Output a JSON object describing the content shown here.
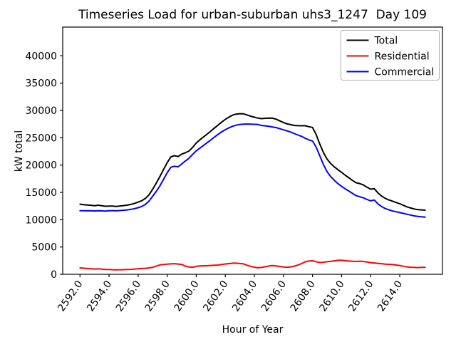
{
  "figure": {
    "title": "Timeseries Load for urban-suburban uhs3_1247  Day 109",
    "xlabel": "Hour of Year",
    "ylabel": "kW total",
    "background": "#ffffff",
    "spine_color": "#000000",
    "legend_edge_color": "#b0b0b0"
  },
  "chart_data": {
    "type": "line",
    "title": "Timeseries Load for urban-suburban uhs3_1247  Day 109",
    "xlabel": "Hour of Year",
    "ylabel": "kW total",
    "grid": false,
    "legend_position": "upper right",
    "xlim": [
      2590.81,
      2616.94
    ],
    "ylim": [
      0,
      45260
    ],
    "x_ticks": [
      2592,
      2594,
      2596,
      2598,
      2600,
      2602,
      2604,
      2606,
      2608,
      2610,
      2612,
      2614
    ],
    "x_tick_labels": [
      "2592.0",
      "2594.0",
      "2596.0",
      "2598.0",
      "2600.0",
      "2602.0",
      "2604.0",
      "2606.0",
      "2608.0",
      "2610.0",
      "2612.0",
      "2614.0"
    ],
    "x_tick_rotation": -55,
    "y_ticks": [
      0,
      5000,
      10000,
      15000,
      20000,
      25000,
      30000,
      35000,
      40000
    ],
    "y_tick_labels": [
      "0",
      "5000",
      "10000",
      "15000",
      "20000",
      "25000",
      "30000",
      "35000",
      "40000"
    ],
    "x": [
      2592.0,
      2592.25,
      2592.5,
      2592.75,
      2593.0,
      2593.25,
      2593.5,
      2593.75,
      2594.0,
      2594.25,
      2594.5,
      2594.75,
      2595.0,
      2595.25,
      2595.5,
      2595.75,
      2596.0,
      2596.25,
      2596.5,
      2596.75,
      2597.0,
      2597.25,
      2597.5,
      2597.75,
      2598.0,
      2598.25,
      2598.5,
      2598.75,
      2599.0,
      2599.25,
      2599.5,
      2599.75,
      2600.0,
      2600.25,
      2600.5,
      2600.75,
      2601.0,
      2601.25,
      2601.5,
      2601.75,
      2602.0,
      2602.25,
      2602.5,
      2602.75,
      2603.0,
      2603.25,
      2603.5,
      2603.75,
      2604.0,
      2604.25,
      2604.5,
      2604.75,
      2605.0,
      2605.25,
      2605.5,
      2605.75,
      2606.0,
      2606.25,
      2606.5,
      2606.75,
      2607.0,
      2607.25,
      2607.5,
      2607.75,
      2608.0,
      2608.25,
      2608.5,
      2608.75,
      2609.0,
      2609.25,
      2609.5,
      2609.75,
      2610.0,
      2610.25,
      2610.5,
      2610.75,
      2611.0,
      2611.25,
      2611.5,
      2611.75,
      2612.0,
      2612.25,
      2612.5,
      2612.75,
      2613.0,
      2613.25,
      2613.5,
      2613.75,
      2614.0,
      2614.25,
      2614.5,
      2614.75,
      2615.0,
      2615.25,
      2615.5,
      2615.75
    ],
    "series": [
      {
        "name": "Total",
        "color": "#000000",
        "values": [
          12830,
          12750,
          12680,
          12640,
          12560,
          12650,
          12550,
          12460,
          12500,
          12500,
          12430,
          12510,
          12570,
          12660,
          12800,
          12990,
          13210,
          13480,
          13900,
          14570,
          15580,
          16710,
          17920,
          19200,
          20450,
          21500,
          21720,
          21560,
          22000,
          22250,
          22580,
          23240,
          24050,
          24620,
          25160,
          25680,
          26220,
          26780,
          27320,
          27870,
          28370,
          28780,
          29140,
          29330,
          29400,
          29390,
          29160,
          28940,
          28760,
          28610,
          28500,
          28560,
          28600,
          28580,
          28390,
          28080,
          27790,
          27540,
          27410,
          27250,
          27210,
          27200,
          27200,
          27030,
          26890,
          25610,
          23850,
          22310,
          21090,
          20280,
          19670,
          19150,
          18670,
          18140,
          17670,
          17190,
          16760,
          16600,
          16350,
          15940,
          15590,
          15680,
          14910,
          14340,
          13920,
          13620,
          13390,
          13150,
          12920,
          12630,
          12350,
          12140,
          11960,
          11830,
          11790,
          11750
        ]
      },
      {
        "name": "Residential",
        "color": "#ff0000",
        "values": [
          1180,
          1120,
          1060,
          1000,
          960,
          1000,
          940,
          890,
          870,
          840,
          810,
          830,
          850,
          870,
          900,
          960,
          1020,
          1060,
          1100,
          1170,
          1280,
          1510,
          1720,
          1800,
          1850,
          1900,
          1940,
          1880,
          1800,
          1500,
          1330,
          1290,
          1450,
          1520,
          1560,
          1580,
          1620,
          1660,
          1700,
          1790,
          1890,
          1960,
          2040,
          2030,
          1970,
          1900,
          1650,
          1450,
          1300,
          1190,
          1250,
          1380,
          1520,
          1610,
          1540,
          1430,
          1340,
          1290,
          1360,
          1490,
          1710,
          1950,
          2300,
          2430,
          2490,
          2310,
          2150,
          2210,
          2290,
          2380,
          2470,
          2550,
          2570,
          2490,
          2420,
          2390,
          2360,
          2400,
          2350,
          2240,
          2140,
          2080,
          2010,
          1940,
          1870,
          1820,
          1790,
          1700,
          1620,
          1480,
          1350,
          1290,
          1260,
          1230,
          1270,
          1280
        ]
      },
      {
        "name": "Commercial",
        "color": "#0000ff",
        "values": [
          11650,
          11630,
          11620,
          11640,
          11600,
          11650,
          11610,
          11570,
          11630,
          11660,
          11620,
          11680,
          11720,
          11790,
          11900,
          12030,
          12190,
          12420,
          12800,
          13400,
          14300,
          15200,
          16200,
          17400,
          18600,
          19600,
          19780,
          19680,
          20200,
          20750,
          21250,
          21950,
          22600,
          23100,
          23600,
          24100,
          24600,
          25120,
          25620,
          26080,
          26480,
          26820,
          27100,
          27300,
          27430,
          27490,
          27510,
          27490,
          27460,
          27420,
          27250,
          27180,
          27080,
          26970,
          26850,
          26650,
          26450,
          26250,
          26050,
          25760,
          25500,
          25250,
          24900,
          24600,
          24400,
          23300,
          21700,
          20100,
          18800,
          17900,
          17200,
          16600,
          16100,
          15650,
          15250,
          14800,
          14400,
          14200,
          14000,
          13700,
          13450,
          13600,
          12900,
          12400,
          12050,
          11800,
          11600,
          11450,
          11300,
          11150,
          11000,
          10850,
          10700,
          10600,
          10520,
          10470
        ]
      }
    ]
  }
}
